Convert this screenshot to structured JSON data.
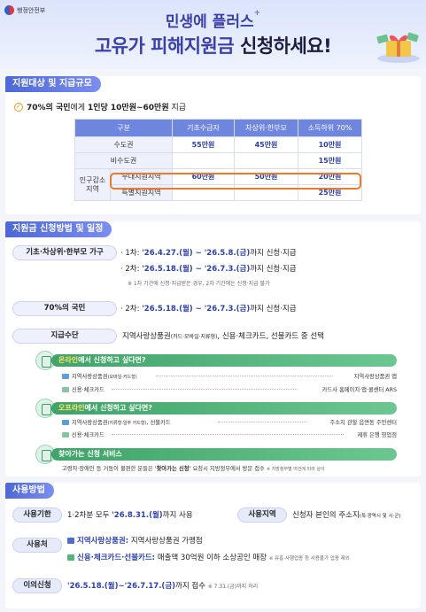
{
  "header": {
    "ministry": "행정안전부",
    "line1_a": "민생",
    "line1_b": "에 플러스",
    "line1_star": "+",
    "line2_a": "고유가 피해지원금",
    "line2_b": " 신청하세요!"
  },
  "section1": {
    "title": "지원대상 및 지급규모",
    "lead_a": "70%의 국민",
    "lead_b": "에게 ",
    "lead_c": "1인당 10만원~60만원",
    "lead_d": " 지급",
    "table": {
      "headers": [
        "구분",
        "기초수급자",
        "차상위·한부모",
        "소득하위 70%"
      ],
      "group_label": "인구감소\n지역",
      "rows": [
        {
          "label": "수도권",
          "v1": "55만원",
          "v2": "45만원",
          "v3": "10만원"
        },
        {
          "label": "비수도권",
          "v1": "",
          "v2": "",
          "v3": "15만원"
        },
        {
          "label": "우대지원지역",
          "v1": "60만원",
          "v2": "50만원",
          "v3": "20만원"
        },
        {
          "label": "특별지원지역",
          "v1": "",
          "v2": "",
          "v3": "25만원"
        }
      ]
    }
  },
  "section2": {
    "title": "지원금 신청방법 및 일정",
    "row1_label": "기초·차상위·한부모 가구",
    "row1_line1_a": "· 1차: ",
    "row1_line1_b": "'26.4.27.(월) ~ '26.5.8.(금)",
    "row1_line1_c": "까지 신청·지급",
    "row1_line2_a": "· 2차: ",
    "row1_line2_b": "'26.5.18.(월) ~ '26.7.3.(금)",
    "row1_line2_c": "까지 신청·지급",
    "row1_note": "※ 1차 기간에 신청·지급받은 경우, 2차 기간에는 신청·지급 불가",
    "row2_label": "70%의 국민",
    "row2_a": "· 2차: ",
    "row2_b": "'26.5.18.(월) ~ '26.7.3.(금)",
    "row2_c": "까지 신청·지급",
    "row3_label": "지급수단",
    "row3_a": "지역사랑상품권",
    "row3_small": "(카드·모바일·지류형)",
    "row3_b": ", 신용·체크카드, 선불카드 중 선택",
    "online": {
      "head_em": "온라인",
      "head_rest": "에서 신청하고 싶다면?",
      "l1": "지역사랑상품권",
      "l1_small": "(모바일·카드형)",
      "r1": "지역사랑상품권 앱",
      "l2": "신용·체크카드",
      "r2": "카드사 홈페이지·앱·콜센터 ARS"
    },
    "offline": {
      "head_em": "오프라인",
      "head_rest": "에서 신청하고 싶다면?",
      "l1": "지역사랑상품권",
      "l1_small": "(지류형·일부 카드형)",
      "l1_rest": ", 선불카드",
      "r1": "주소지 관할 읍면동 주민센터",
      "l2": "신용·체크카드",
      "r2": "제휴 은행 영업점"
    },
    "visit": {
      "head": "찾아가는 신청 서비스",
      "text_a": "고령자·장애인 등 거동이 불편한 분들은 ",
      "text_b": "'찾아가는 신청'",
      "text_c": " 요청시 지방정부에서 방문 접수",
      "note": "※ 지방정부별 여건에 따라 상이"
    }
  },
  "section3": {
    "title": "사용방법",
    "deadline_label": "사용기한",
    "deadline_a": "1·2차분 모두 ",
    "deadline_b": "'26.8.31.(월)",
    "deadline_c": "까지 사용",
    "region_label": "사용지역",
    "region_a": "신청자 본인의 주소지",
    "region_small": "(특·광역시 및 시·군)",
    "place_label": "사용처",
    "place1_a": "지역사랑상품권:",
    "place1_b": " 지역사랑상품권 가맹점",
    "place2_a": "신용·체크카드·선불카드:",
    "place2_b": " 매출액 30억원 이하 소상공인 매장",
    "place2_note": "※ 유흥·사행업종 등 사용불가 업종 제외",
    "objection_label": "이의신청",
    "objection_a": "'26.5.18.(월)~'26.7.17.(금)",
    "objection_b": "까지 접수",
    "objection_note": "※ 7.31.(금)까지 처리"
  },
  "colors": {
    "primary": "#3b3fa8",
    "title_bar": "#4d68d6",
    "highlight": "#ef7a2a",
    "green": "#3fa36a"
  }
}
